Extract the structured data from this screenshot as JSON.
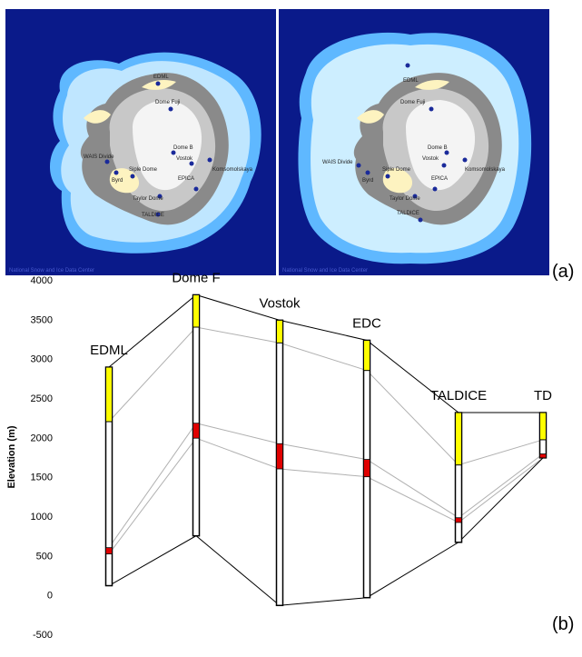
{
  "panel_a": {
    "label": "(a)",
    "credit_left": "National Snow and Ice Data Center",
    "credit_right": "National Snow and Ice Data Center",
    "left_map_sites": [
      "EDML",
      "Dome Fuji",
      "Dome B",
      "Vostok",
      "Komsomolskaya",
      "EPICA",
      "WAIS Divide",
      "Byrd",
      "Siple Dome",
      "Taylor Dome",
      "TALDICE"
    ],
    "right_map_sites": [
      "EDML",
      "Dome Fuji",
      "Dome B",
      "Vostok",
      "Komsomolskaya",
      "EPICA",
      "WAIS Divide",
      "Byrd",
      "Siple Dome",
      "Taylor Dome",
      "TALDICE"
    ]
  },
  "panel_b": {
    "label": "(b)"
  },
  "chart_data": {
    "type": "bar",
    "ylabel": "Elevation (m)",
    "ylim": [
      -500,
      4000
    ],
    "yticks": [
      -500,
      0,
      500,
      1000,
      1500,
      2000,
      2500,
      3000,
      3500,
      4000
    ],
    "grid": false,
    "categories": [
      "EDML",
      "Dome F",
      "Vostok",
      "EDC",
      "TALDICE",
      "TD"
    ],
    "surface": [
      2892,
      3810,
      3488,
      3233,
      2315,
      2315
    ],
    "bedrock": [
      117,
      750,
      -134,
      -35,
      668,
      1740
    ],
    "yellow_segment": {
      "top": [
        2892,
        3810,
        3488,
        3233,
        2315,
        2315
      ],
      "bottom": [
        2200,
        3400,
        3200,
        2850,
        1650,
        1970
      ]
    },
    "red_segment": {
      "top": [
        600,
        2180,
        1920,
        1720,
        980,
        1790
      ],
      "bottom": [
        520,
        1990,
        1600,
        1500,
        920,
        1740
      ]
    },
    "colors": {
      "yellow": "#ffff00",
      "red": "#e00000",
      "column_fill": "#ffffff",
      "outline": "#000000",
      "connector": "#b0b0b0"
    }
  }
}
